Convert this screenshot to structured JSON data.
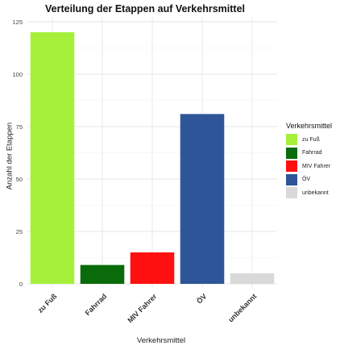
{
  "chart_data": {
    "type": "bar",
    "title": "Verteilung der Etappen auf Verkehrsmittel",
    "xlabel": "Verkehrsmittel",
    "ylabel": "Anzahl der Etappen",
    "categories": [
      "zu Fuß",
      "Fahrrad",
      "MIV Fahrer",
      "ÖV",
      "unbekannt"
    ],
    "values": [
      120,
      9,
      15,
      81,
      5
    ],
    "colors": [
      "#a6f03c",
      "#0a6b0a",
      "#ff1010",
      "#2e5597",
      "#d9d9d9"
    ],
    "yticks": [
      0,
      25,
      50,
      75,
      100,
      125
    ],
    "ylim": [
      0,
      125
    ],
    "grid": true,
    "legend_title": "Verkehrsmittel",
    "legend_position": "right"
  }
}
